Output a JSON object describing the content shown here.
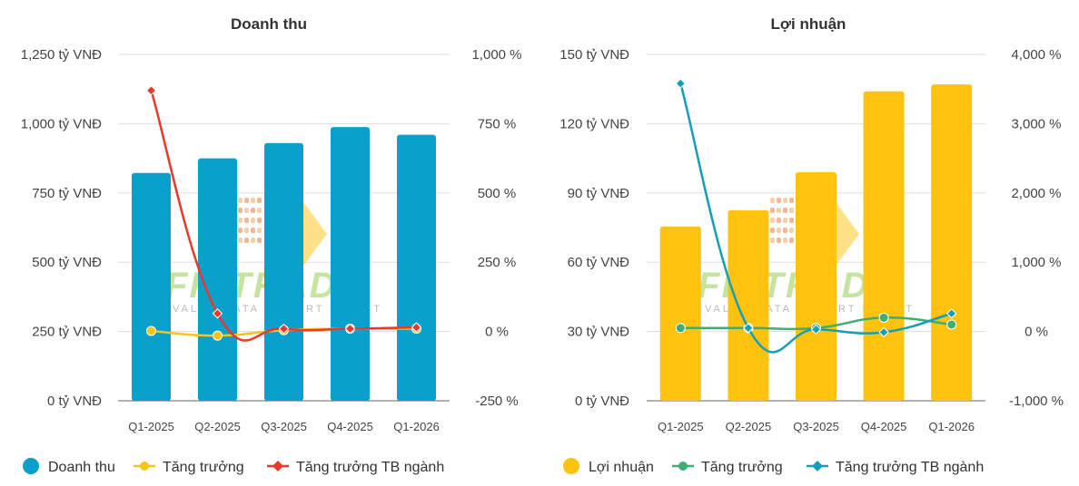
{
  "colors": {
    "revenue_bar": "#0aa0cc",
    "revenue_growth": "#f5c518",
    "revenue_industry": "#e8392a",
    "profit_bar": "#ffc20e",
    "profit_growth": "#3daf72",
    "profit_industry": "#139fb8",
    "grid": "#dddddd",
    "axis": "#666666"
  },
  "chart_data": [
    {
      "type": "bar",
      "title": "Doanh thu",
      "categories": [
        "Q1-2025",
        "Q2-2025",
        "Q3-2025",
        "Q4-2025",
        "Q1-2026"
      ],
      "left_axis": {
        "ylim": [
          0,
          1250
        ],
        "ticks": [
          0,
          250,
          500,
          750,
          1000,
          1250
        ],
        "tick_labels": [
          "0 tỷ VNĐ",
          "250 tỷ VNĐ",
          "500 tỷ VNĐ",
          "750 tỷ VNĐ",
          "1,000 tỷ VNĐ",
          "1,250 tỷ VNĐ"
        ]
      },
      "right_axis": {
        "ylim": [
          -250,
          1000
        ],
        "ticks": [
          -250,
          0,
          250,
          500,
          750,
          1000
        ],
        "tick_labels": [
          "-250 %",
          "0 %",
          "250 %",
          "500 %",
          "750 %",
          "1,000 %"
        ]
      },
      "series": [
        {
          "name": "Doanh thu",
          "kind": "bar",
          "axis": "left",
          "marker": "circle",
          "values": [
            822,
            875,
            930,
            988,
            960
          ]
        },
        {
          "name": "Tăng trưởng",
          "kind": "line",
          "axis": "right",
          "marker": "circle",
          "smooth": true,
          "values": [
            2,
            -15,
            5,
            10,
            10
          ]
        },
        {
          "name": "Tăng trưởng TB ngành",
          "kind": "line",
          "axis": "right",
          "marker": "diamond",
          "smooth": true,
          "values": [
            870,
            65,
            10,
            10,
            15
          ]
        }
      ],
      "grid": true,
      "legend": "bottom"
    },
    {
      "type": "bar",
      "title": "Lợi nhuận",
      "categories": [
        "Q1-2025",
        "Q2-2025",
        "Q3-2025",
        "Q4-2025",
        "Q1-2026"
      ],
      "left_axis": {
        "ylim": [
          0,
          150
        ],
        "ticks": [
          0,
          30,
          60,
          90,
          120,
          150
        ],
        "tick_labels": [
          "0 tỷ VNĐ",
          "30 tỷ VNĐ",
          "60 tỷ VNĐ",
          "90 tỷ VNĐ",
          "120 tỷ VNĐ",
          "150 tỷ VNĐ"
        ]
      },
      "right_axis": {
        "ylim": [
          -1000,
          4000
        ],
        "ticks": [
          -1000,
          0,
          1000,
          2000,
          3000,
          4000
        ],
        "tick_labels": [
          "-1,000 %",
          "0 %",
          "1,000 %",
          "2,000 %",
          "3,000 %",
          "4,000 %"
        ]
      },
      "series": [
        {
          "name": "Lợi nhuận",
          "kind": "bar",
          "axis": "left",
          "marker": "circle",
          "values": [
            75.5,
            82.5,
            99,
            134,
            137
          ]
        },
        {
          "name": "Tăng trưởng",
          "kind": "line",
          "axis": "right",
          "marker": "circle",
          "smooth": true,
          "values": [
            50,
            50,
            50,
            200,
            100
          ]
        },
        {
          "name": "Tăng trưởng TB ngành",
          "kind": "line",
          "axis": "right",
          "marker": "diamond",
          "smooth": true,
          "values": [
            3580,
            50,
            30,
            -10,
            260
          ]
        }
      ],
      "grid": true,
      "legend": "bottom"
    }
  ],
  "watermark": {
    "text": "FINTRADE",
    "subtitle": "VALUE DATA - SMART INVEST"
  }
}
